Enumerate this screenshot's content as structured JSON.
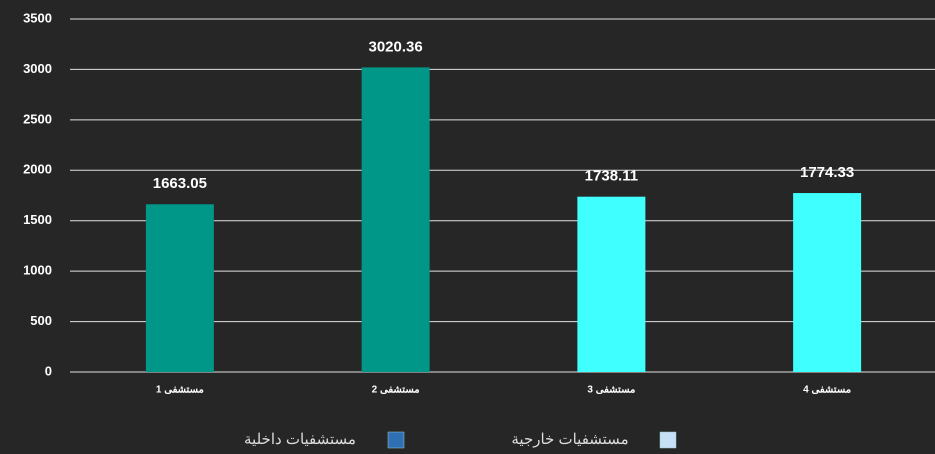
{
  "chart_data": {
    "type": "bar",
    "categories": [
      "مستشفى 1",
      "مستشفى 2",
      "مستشفى 3",
      "مستشفى 4"
    ],
    "values": [
      1663.05,
      3020.36,
      1738.11,
      1774.33
    ],
    "colors": [
      "#009688",
      "#009688",
      "#40ffff",
      "#40ffff"
    ],
    "ylim": [
      0,
      3500
    ],
    "yticks": [
      0,
      500,
      1000,
      1500,
      2000,
      2500,
      3000,
      3500
    ],
    "grid": true,
    "legend": [
      {
        "name": "مستشفيات خارجية",
        "color": "#c6e0f5"
      },
      {
        "name": "مستشفيات داخلية",
        "color": "#2f6fb3"
      }
    ],
    "legend_position": "bottom"
  }
}
